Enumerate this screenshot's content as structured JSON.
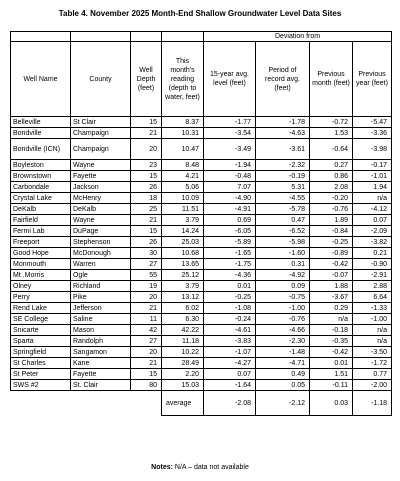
{
  "title": "Table 4.  November 2025 Month-End Shallow Groundwater Level Data Sites",
  "headers": {
    "deviation_from": "Deviation from",
    "well_name": "Well Name",
    "county": "County",
    "well_depth": "Well Depth (feet)",
    "reading": "This month's reading (depth to water, feet)",
    "avg15": "15-year avg. level (feet)",
    "period": "Period of record avg. (feet)",
    "prev_month": "Previous month (feet)",
    "prev_year": "Previous year (feet)"
  },
  "rows": [
    {
      "name": "Belleville",
      "county": "St Clair",
      "depth": "15",
      "reading": "8.37",
      "avg15": "-1.77",
      "period": "-1.78",
      "prev_month": "-0.72",
      "prev_year": "-5.47"
    },
    {
      "name": "Bondville",
      "county": "Champaign",
      "depth": "21",
      "reading": "10.31",
      "avg15": "-3.54",
      "period": "-4.63",
      "prev_month": "1.53",
      "prev_year": "-3.36"
    },
    {
      "name": "Bondville (ICN)",
      "county": "Champaign",
      "depth": "20",
      "reading": "10.47",
      "avg15": "-3.49",
      "period": "-3.61",
      "prev_month": "-0.64",
      "prev_year": "-3.98"
    },
    {
      "name": "Boyleston",
      "county": "Wayne",
      "depth": "23",
      "reading": "8.48",
      "avg15": "-1.94",
      "period": "-2.32",
      "prev_month": "0.27",
      "prev_year": "-0.17"
    },
    {
      "name": "Brownstown",
      "county": "Fayette",
      "depth": "15",
      "reading": "4.21",
      "avg15": "-0.48",
      "period": "-0.19",
      "prev_month": "0.86",
      "prev_year": "-1.01"
    },
    {
      "name": "Carbondale",
      "county": "Jackson",
      "depth": "26",
      "reading": "5.06",
      "avg15": "7.07",
      "period": "5.31",
      "prev_month": "2.08",
      "prev_year": "1.94"
    },
    {
      "name": "Crystal Lake",
      "county": "McHenry",
      "depth": "18",
      "reading": "10.09",
      "avg15": "-4.90",
      "period": "-4.55",
      "prev_month": "-0.20",
      "prev_year": "n/a"
    },
    {
      "name": "DeKalb",
      "county": "DeKalb",
      "depth": "25",
      "reading": "11.51",
      "avg15": "-4.91",
      "period": "-5.78",
      "prev_month": "-0.76",
      "prev_year": "-4.12"
    },
    {
      "name": "Fairfield",
      "county": "Wayne",
      "depth": "21",
      "reading": "3.79",
      "avg15": "0.69",
      "period": "0.47",
      "prev_month": "1.89",
      "prev_year": "0.07"
    },
    {
      "name": "Fermi Lab",
      "county": "DuPage",
      "depth": "15",
      "reading": "14.24",
      "avg15": "-6.05",
      "period": "-6.52",
      "prev_month": "-0.84",
      "prev_year": "-2.09"
    },
    {
      "name": "Freeport",
      "county": "Stephenson",
      "depth": "26",
      "reading": "25.03",
      "avg15": "-5.89",
      "period": "-5.98",
      "prev_month": "-0.25",
      "prev_year": "-3.82"
    },
    {
      "name": "Good Hope",
      "county": "McDonough",
      "depth": "30",
      "reading": "10.68",
      "avg15": "-1.65",
      "period": "-1.60",
      "prev_month": "-0.89",
      "prev_year": "0.21"
    },
    {
      "name": "Monmouth",
      "county": "Warren",
      "depth": "27",
      "reading": "13.65",
      "avg15": "-1.75",
      "period": "0.31",
      "prev_month": "-0.42",
      "prev_year": "-0.90"
    },
    {
      "name": "Mt .Morris",
      "county": "Ogle",
      "depth": "55",
      "reading": "25.12",
      "avg15": "-4.36",
      "period": "-4.92",
      "prev_month": "-0.07",
      "prev_year": "-2.91"
    },
    {
      "name": "Olney",
      "county": "Richland",
      "depth": "19",
      "reading": "3.79",
      "avg15": "0.01",
      "period": "0.09",
      "prev_month": "1.88",
      "prev_year": "2.88"
    },
    {
      "name": "Perry",
      "county": "Pike",
      "depth": "20",
      "reading": "13.12",
      "avg15": "-0.25",
      "period": "-0.75",
      "prev_month": "-3.67",
      "prev_year": "6.64"
    },
    {
      "name": "Rend Lake",
      "county": "Jefferson",
      "depth": "21",
      "reading": "6.02",
      "avg15": "-1.08",
      "period": "-1.00",
      "prev_month": "0.29",
      "prev_year": "-1.33"
    },
    {
      "name": "SE College",
      "county": "Saline",
      "depth": "11",
      "reading": "6.30",
      "avg15": "-0.24",
      "period": "-0.76",
      "prev_month": "n/a",
      "prev_year": "-1.00"
    },
    {
      "name": "Snicarte",
      "county": "Mason",
      "depth": "42",
      "reading": "42.22",
      "avg15": "-4.61",
      "period": "-4.66",
      "prev_month": "-0.18",
      "prev_year": "n/a"
    },
    {
      "name": "Sparta",
      "county": "Randolph",
      "depth": "27",
      "reading": "11.18",
      "avg15": "-3.83",
      "period": "-2.30",
      "prev_month": "-0.35",
      "prev_year": "n/a"
    },
    {
      "name": "Springfield",
      "county": "Sangamon",
      "depth": "20",
      "reading": "10.22",
      "avg15": "-1.07",
      "period": "-1.48",
      "prev_month": "-0.42",
      "prev_year": "-3.50"
    },
    {
      "name": "St Charles",
      "county": "Kane",
      "depth": "21",
      "reading": "28.49",
      "avg15": "-4.27",
      "period": "-4.71",
      "prev_month": "0.01",
      "prev_year": "-1.72"
    },
    {
      "name": "St Peter",
      "county": "Fayette",
      "depth": "15",
      "reading": "2.20",
      "avg15": "0.07",
      "period": "0.49",
      "prev_month": "1.51",
      "prev_year": "0.77"
    },
    {
      "name": "SWS #2",
      "county": "St. Clair",
      "depth": "80",
      "reading": "15.03",
      "avg15": "-1.64",
      "period": "0.05",
      "prev_month": "-0.11",
      "prev_year": "-2.00"
    }
  ],
  "average": {
    "label": "average",
    "avg15": "-2.08",
    "period": "-2.12",
    "prev_month": "0.03",
    "prev_year": "-1.18"
  },
  "notes": {
    "label": "Notes:",
    "text": "N/A – data not available"
  }
}
